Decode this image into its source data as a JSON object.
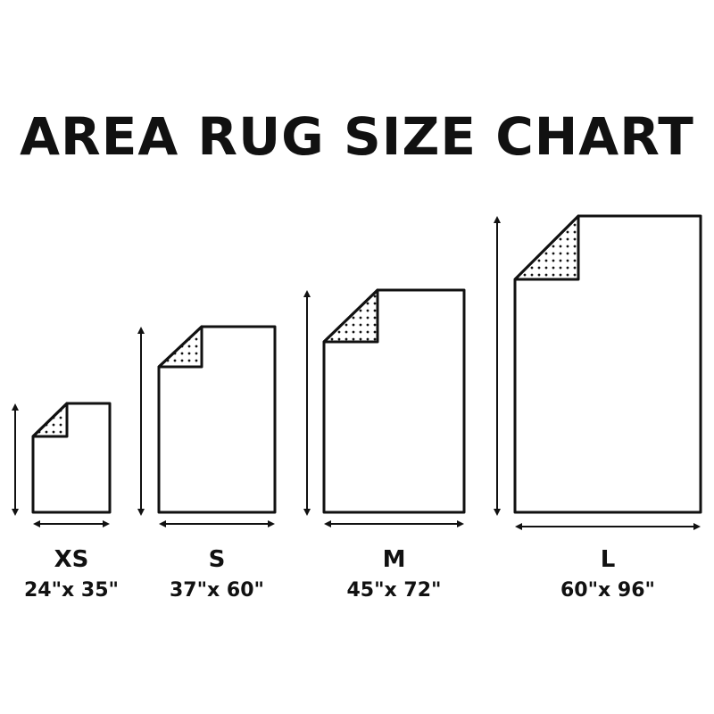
{
  "title": "AREA RUG SIZE CHART",
  "rugs": [
    {
      "size": "XS",
      "dimensions": "24\"x 35\""
    },
    {
      "size": "S",
      "dimensions": "37\"x 60\""
    },
    {
      "size": "M",
      "dimensions": "45\"x 72\""
    },
    {
      "size": "L",
      "dimensions": "60\"x 96\""
    }
  ],
  "colors": {
    "stroke": "#111111",
    "background": "#ffffff"
  }
}
